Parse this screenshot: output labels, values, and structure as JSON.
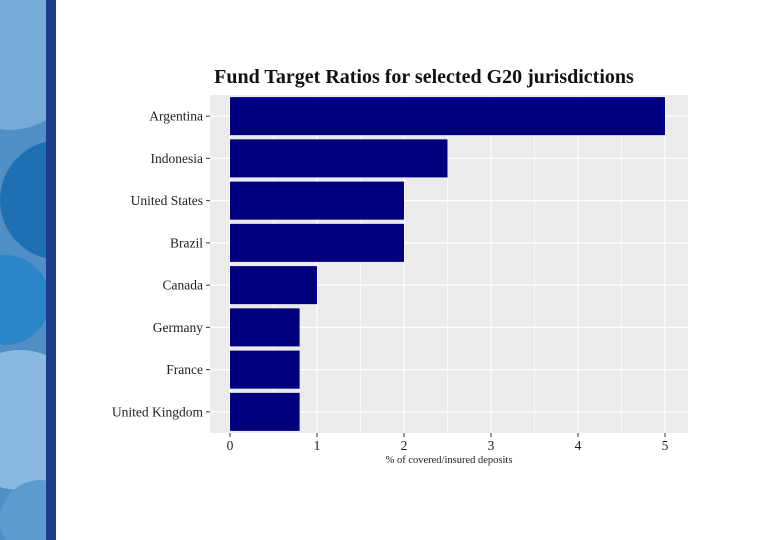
{
  "chart_data": {
    "type": "bar",
    "orientation": "horizontal",
    "title": "Fund Target Ratios for selected G20 jurisdictions",
    "xlabel": "% of covered/insured deposits",
    "ylabel": "",
    "categories": [
      "Argentina",
      "Indonesia",
      "United States",
      "Brazil",
      "Canada",
      "Germany",
      "France",
      "United Kingdom"
    ],
    "values": [
      5,
      2.5,
      2,
      2,
      1,
      0.8,
      0.8,
      0.8
    ],
    "xlim": [
      0,
      5.25
    ],
    "x_ticks": [
      0,
      1,
      2,
      3,
      4,
      5
    ],
    "grid": true,
    "legend": "none",
    "colors": {
      "bar": "#00007f",
      "panel_background": "#ebebeb",
      "gridline": "#ffffff",
      "decoration_dark": "#1f3c8c",
      "decoration_light": "#9cc3e4"
    }
  }
}
